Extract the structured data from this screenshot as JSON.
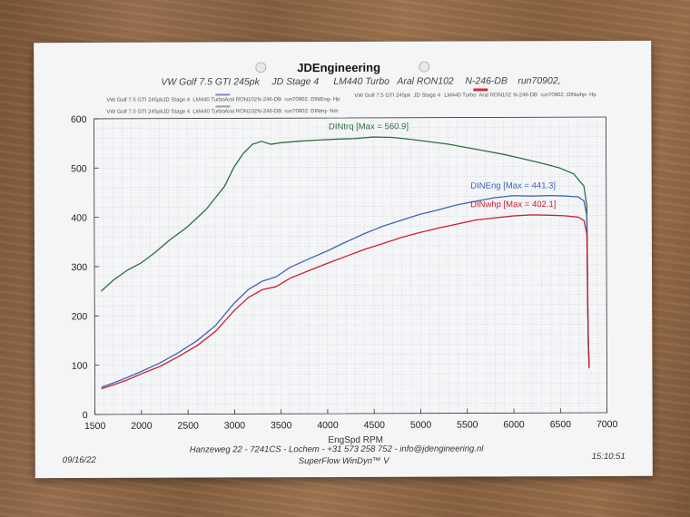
{
  "title": "JDEngineering",
  "subtitle_parts": [
    "VW Golf 7.5 GTI 245pk",
    "JD Stage 4",
    "LM440 Turbo",
    "Aral RON102",
    "N-246-DB",
    "run70902,"
  ],
  "legend_rows": [
    {
      "car": "VW Golf 7.5 GTI 245pk",
      "stage": "JD Stage 4",
      "turbo": "LM440 Turbo",
      "fuel": "Aral RON102",
      "plate": "N-246-DB",
      "run": "run70902: DINEng- Hp",
      "color": "#7c8ad0"
    },
    {
      "car": "VW Golf 7.5 GTI 245pk",
      "stage": "JD Stage 4",
      "turbo": "LM440 Turbo",
      "fuel": "Aral RON102",
      "plate": "N-246-DB",
      "run": "run70902: DINwhp- Hp",
      "color": "#d22a3a"
    },
    {
      "car": "VW Golf 7.5 GTI 245pk",
      "stage": "JD Stage 4",
      "turbo": "LM440 Turbo",
      "fuel": "Aral RON102",
      "plate": "N-246-DB",
      "run": "run70902: DINtrq- Nm",
      "color": "#9aa39a"
    }
  ],
  "footer": {
    "date": "09/16/22",
    "time": "15:10:51",
    "address": "Hanzeweg 22 - 7241CS - Lochem - +31 573 258 752 - info@jdengineering.nl",
    "software": "SuperFlow WinDyn™ V"
  },
  "chart_data": {
    "type": "line",
    "xlabel": "EngSpd  RPM",
    "ylabel": "",
    "xlim": [
      1500,
      7000
    ],
    "ylim": [
      0,
      600
    ],
    "xticks": [
      1500,
      2000,
      2500,
      3000,
      3500,
      4000,
      4500,
      5000,
      5500,
      6000,
      6500,
      7000
    ],
    "yticks": [
      0,
      100,
      200,
      300,
      400,
      500,
      600
    ],
    "grid": true,
    "series": [
      {
        "name": "DINtrq",
        "label": "DINtrq [Max = 560.9]",
        "color": "#2f6e45",
        "x": [
          1570,
          1700,
          1850,
          2000,
          2150,
          2300,
          2500,
          2700,
          2900,
          3000,
          3100,
          3200,
          3300,
          3400,
          3500,
          3700,
          3900,
          4100,
          4300,
          4500,
          4700,
          4900,
          5100,
          5300,
          5500,
          5700,
          5900,
          6100,
          6300,
          6500,
          6650,
          6760,
          6790,
          6800,
          6810
        ],
        "y": [
          250,
          272,
          292,
          307,
          328,
          352,
          380,
          415,
          462,
          500,
          528,
          547,
          553,
          547,
          550,
          553,
          555,
          557,
          558,
          561,
          560,
          556,
          551,
          546,
          539,
          532,
          525,
          516,
          507,
          497,
          485,
          460,
          420,
          170,
          95
        ]
      },
      {
        "name": "DINEng",
        "label": "DINEng [Max = 441.3]",
        "color": "#3f63b4",
        "x": [
          1570,
          1700,
          1850,
          2000,
          2200,
          2400,
          2600,
          2800,
          3000,
          3150,
          3300,
          3450,
          3600,
          3800,
          4000,
          4200,
          4400,
          4600,
          4800,
          5000,
          5200,
          5400,
          5600,
          5800,
          6000,
          6200,
          6400,
          6550,
          6700,
          6760,
          6790,
          6800,
          6810
        ],
        "y": [
          55,
          64,
          75,
          87,
          104,
          125,
          149,
          180,
          225,
          252,
          269,
          278,
          297,
          314,
          330,
          348,
          365,
          380,
          392,
          404,
          413,
          423,
          430,
          437,
          441,
          440,
          441,
          440,
          438,
          430,
          400,
          160,
          95
        ]
      },
      {
        "name": "DINwhp",
        "label": "DINwhp [Max = 402.1]",
        "color": "#c8202e",
        "x": [
          1570,
          1700,
          1850,
          2000,
          2200,
          2400,
          2600,
          2800,
          3000,
          3150,
          3300,
          3450,
          3600,
          3800,
          4000,
          4200,
          4400,
          4600,
          4800,
          5000,
          5200,
          5400,
          5600,
          5800,
          6000,
          6200,
          6400,
          6550,
          6700,
          6760,
          6790,
          6800,
          6810
        ],
        "y": [
          52,
          60,
          70,
          82,
          97,
          117,
          139,
          168,
          210,
          236,
          252,
          258,
          275,
          290,
          305,
          319,
          333,
          345,
          357,
          367,
          376,
          384,
          392,
          396,
          400,
          402,
          401,
          400,
          397,
          390,
          362,
          145,
          90
        ]
      }
    ]
  }
}
